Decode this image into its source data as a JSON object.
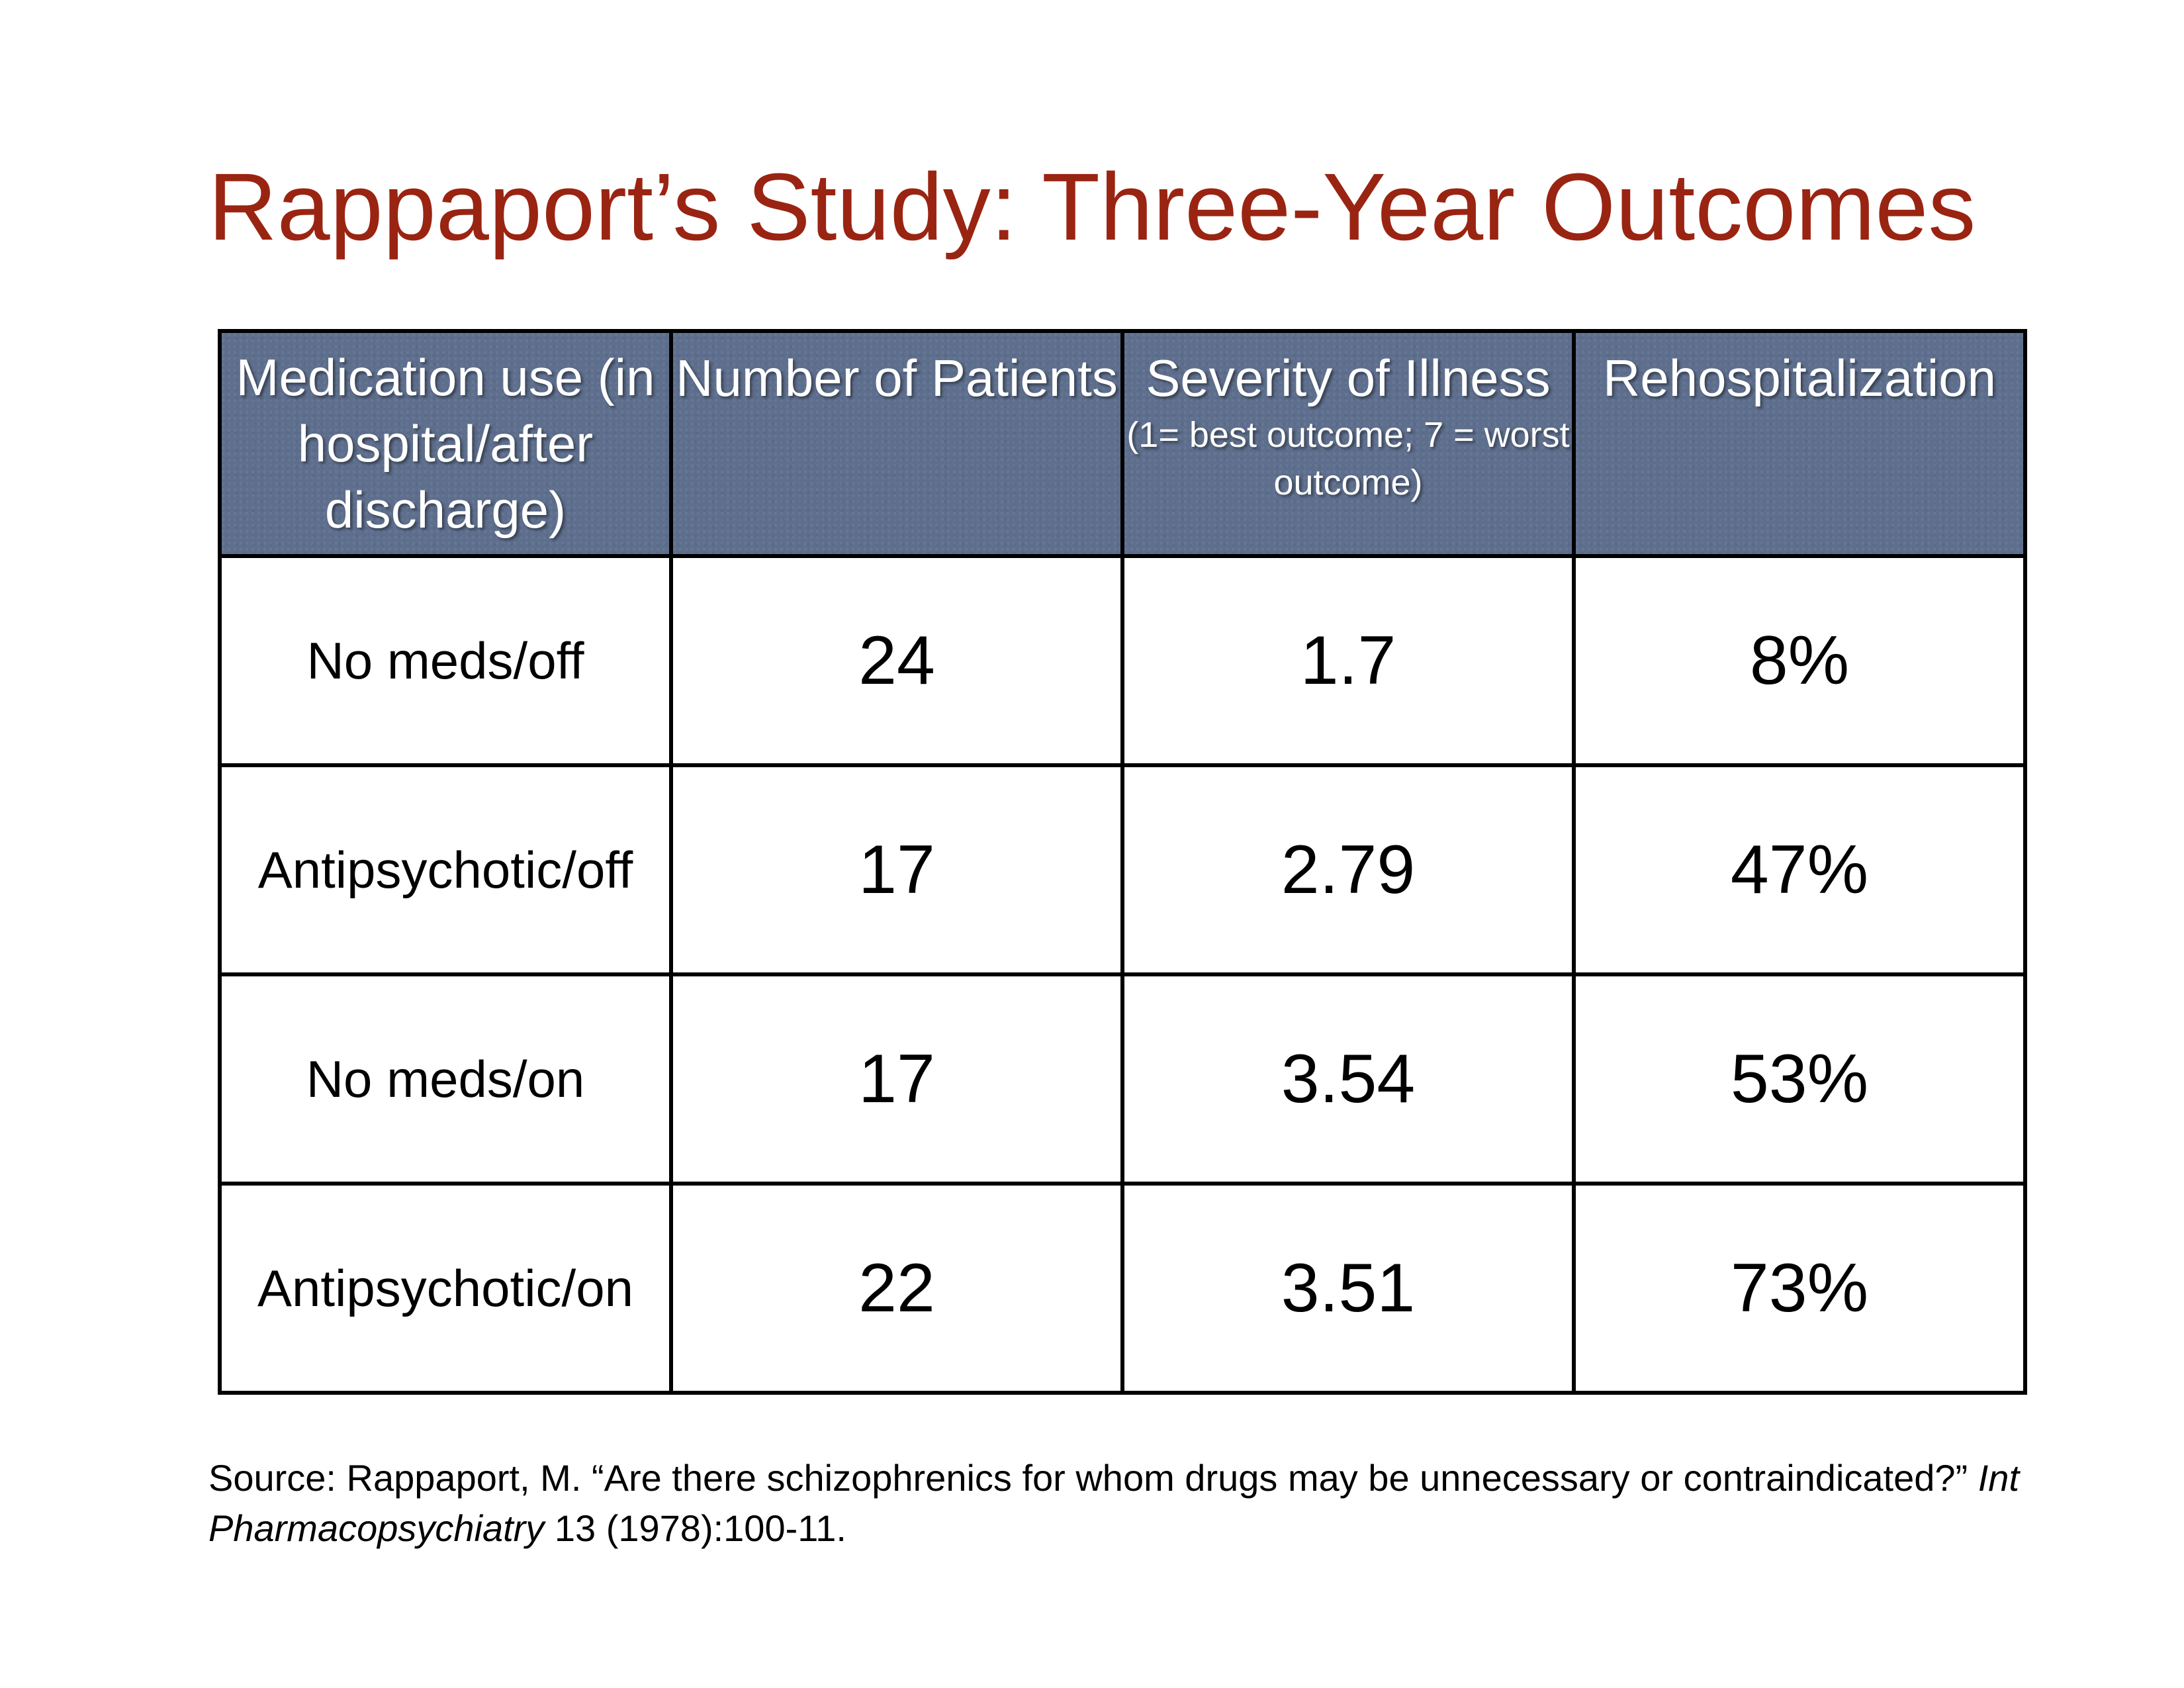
{
  "title": "Rappaport’s Study: Three-Year Outcomes",
  "colors": {
    "title": "#9a2412",
    "header_background": "#5e6f8e",
    "header_text": "#ffffff",
    "grid": "#000000"
  },
  "table": {
    "headers": [
      {
        "main": "Medication use (in hospital/after discharge)",
        "sub": ""
      },
      {
        "main": "Number of Patients",
        "sub": ""
      },
      {
        "main": "Severity of Illness",
        "sub": "(1= best outcome; 7 = worst outcome)"
      },
      {
        "main": "Rehospitalization",
        "sub": ""
      }
    ],
    "rows": [
      {
        "medication": "No meds/off",
        "patients": "24",
        "severity": "1.7",
        "rehospitalization": "8%"
      },
      {
        "medication": "Antipsychotic/off",
        "patients": "17",
        "severity": "2.79",
        "rehospitalization": "47%"
      },
      {
        "medication": "No meds/on",
        "patients": "17",
        "severity": "3.54",
        "rehospitalization": "53%"
      },
      {
        "medication": "Antipsychotic/on",
        "patients": "22",
        "severity": "3.51",
        "rehospitalization": "73%"
      }
    ]
  },
  "source": {
    "prefix": "Source: Rappaport, M. “Are there schizophrenics for whom drugs may be unnecessary or contraindicated?” ",
    "journal": "Int Pharmacopsychiatry",
    "suffix": " 13 (1978):100-11."
  }
}
